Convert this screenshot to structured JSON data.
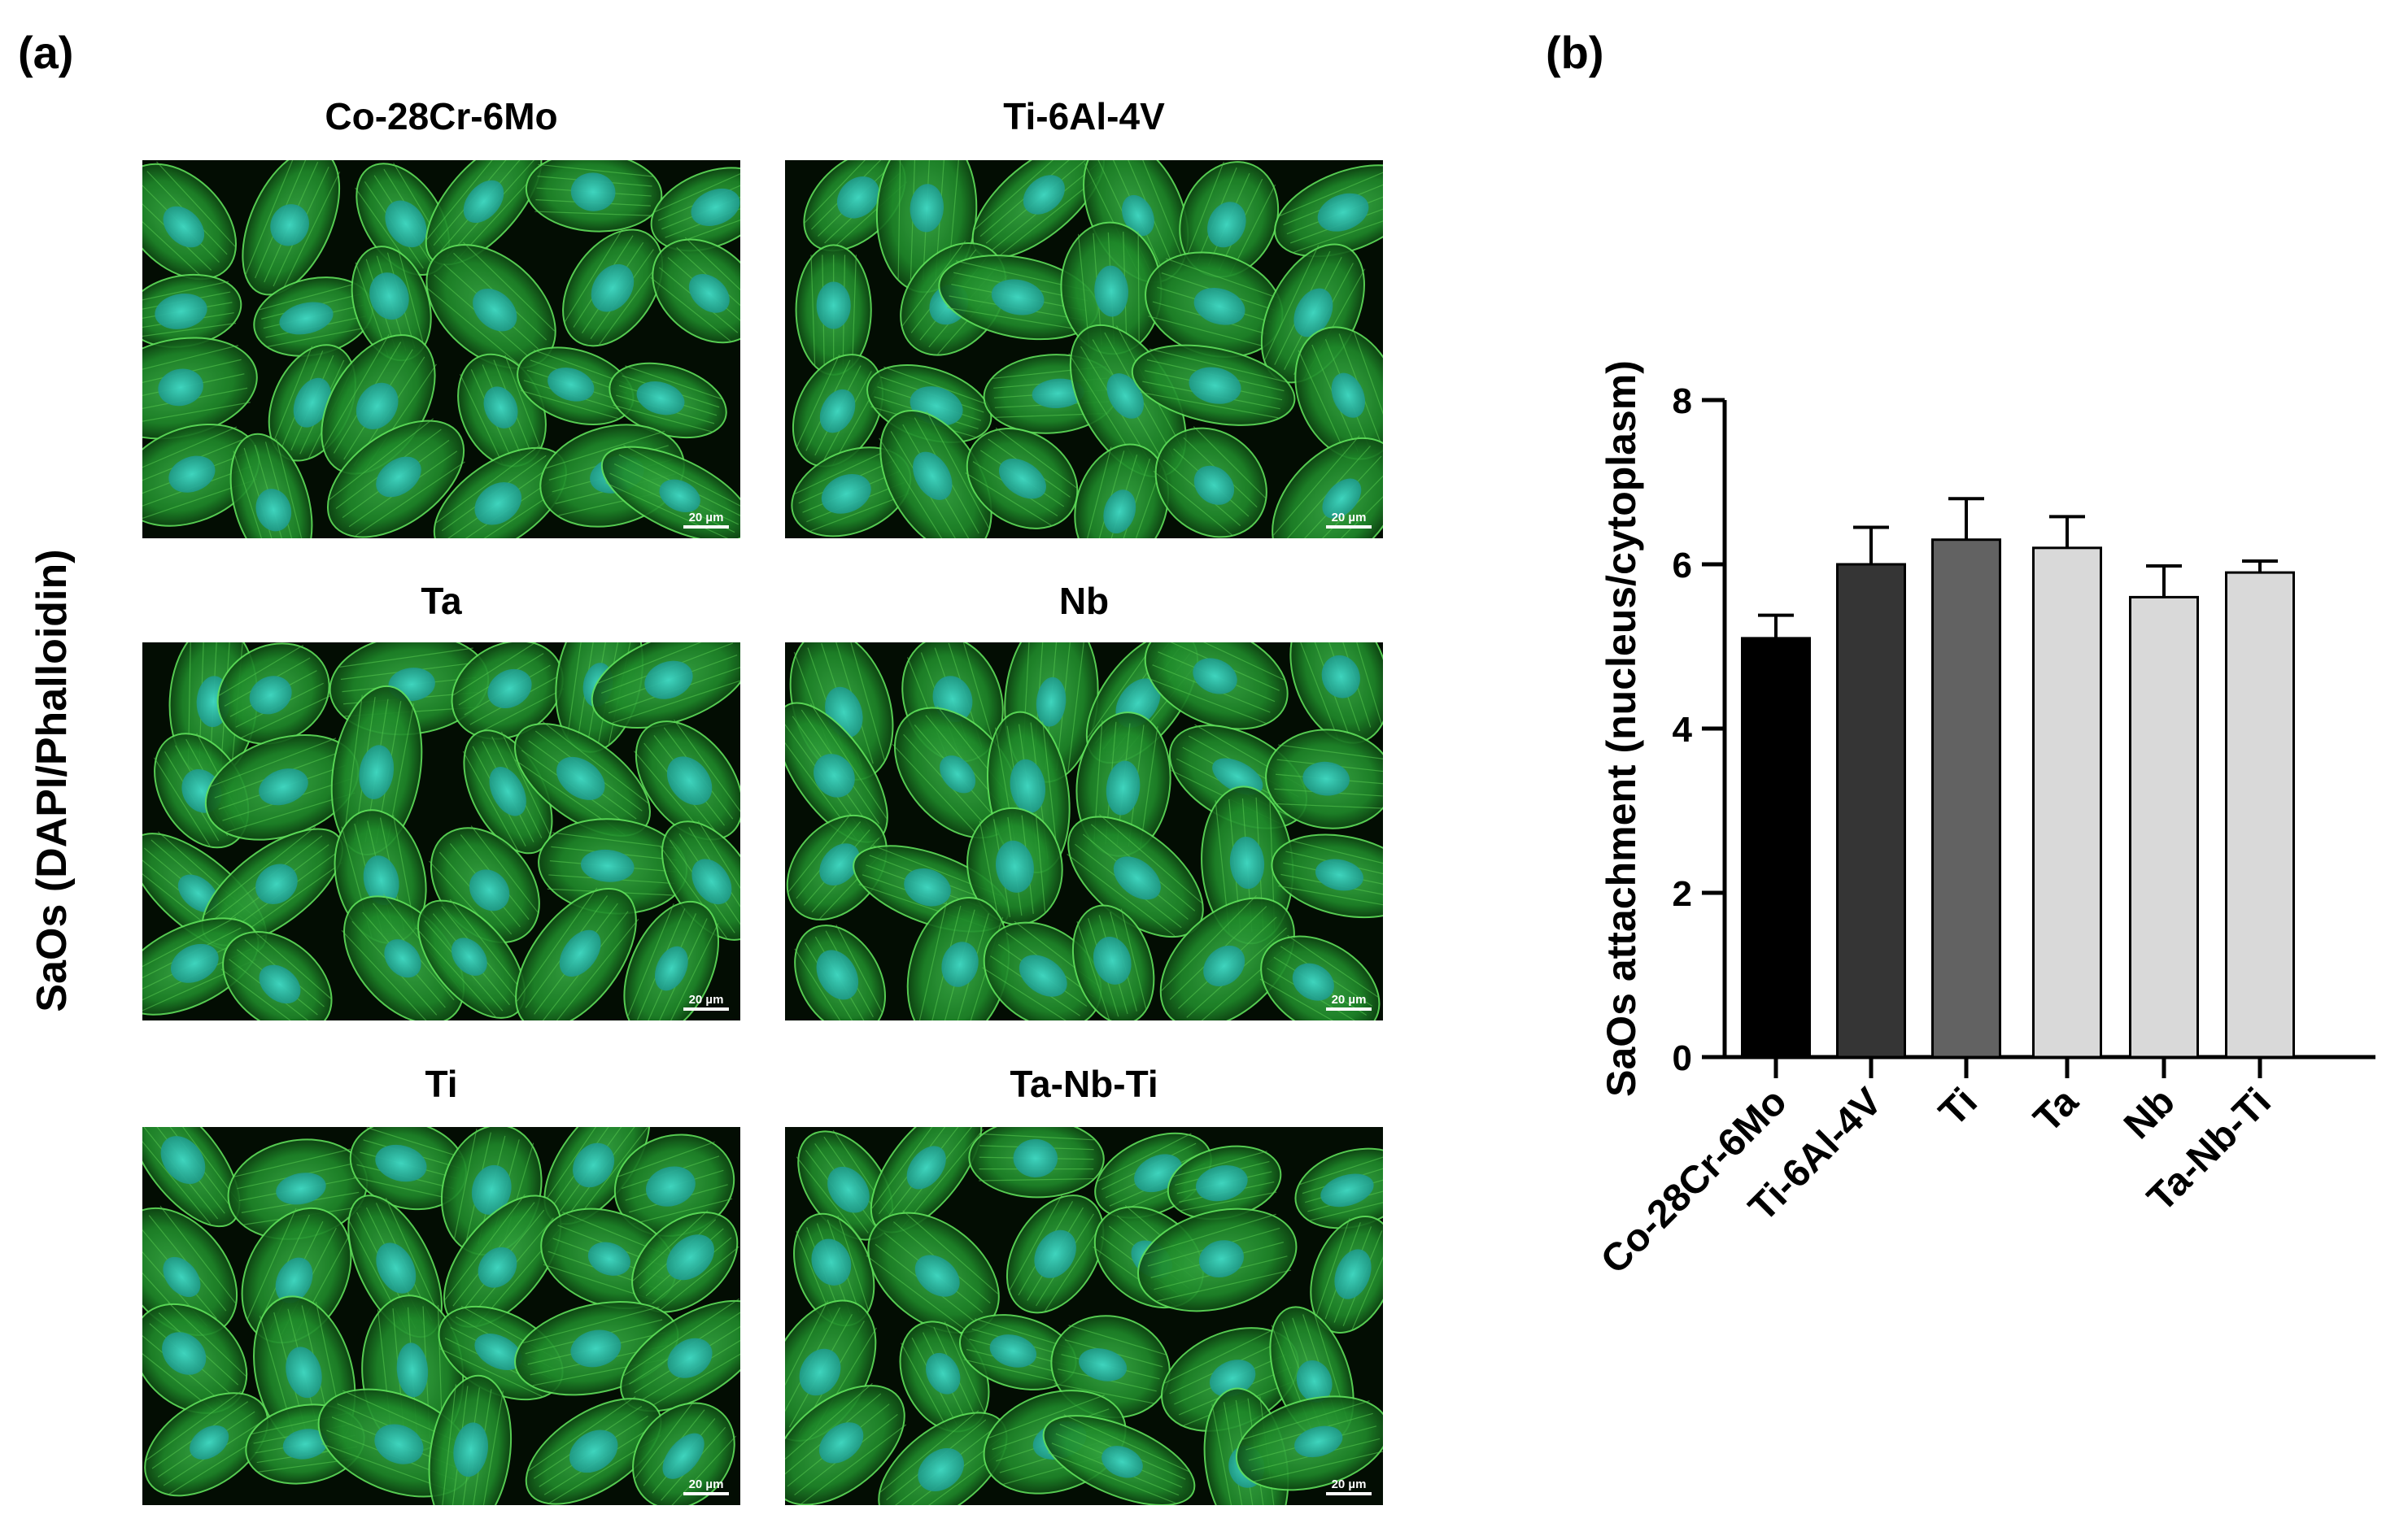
{
  "panel_a": {
    "label": "(a)",
    "side_label": "SaOs (DAPI/Phalloidin)",
    "images": [
      {
        "title": "Co-28Cr-6Mo",
        "scale_text": "20 µm"
      },
      {
        "title": "Ti-6Al-4V",
        "scale_text": "20 µm"
      },
      {
        "title": "Ta",
        "scale_text": "20 µm"
      },
      {
        "title": "Nb",
        "scale_text": "20 µm"
      },
      {
        "title": "Ti",
        "scale_text": "20 µm"
      },
      {
        "title": "Ta-Nb-Ti",
        "scale_text": "20 µm"
      }
    ]
  },
  "panel_b": {
    "label": "(b)"
  },
  "chart_data": {
    "type": "bar",
    "categories": [
      "Co-28Cr-6Mo",
      "Ti-6Al-4V",
      "Ti",
      "Ta",
      "Nb",
      "Ta-Nb-Ti"
    ],
    "values": [
      5.1,
      6.0,
      6.3,
      6.2,
      5.6,
      5.9
    ],
    "errors": [
      0.28,
      0.45,
      0.5,
      0.38,
      0.38,
      0.14
    ],
    "bar_colors": [
      "#000000",
      "#353535",
      "#626262",
      "#d9d9d9",
      "#d9d9d9",
      "#d9d9d9"
    ],
    "ylabel": "SaOs attachment (nucleus/cytoplasm)",
    "ylim": [
      0,
      8
    ],
    "yticks": [
      "0",
      "2",
      "4",
      "6",
      "8"
    ],
    "grid": false
  }
}
